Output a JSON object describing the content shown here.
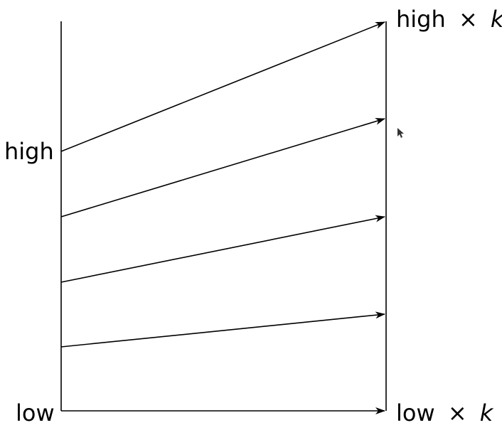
{
  "diagram": {
    "left_axis": {
      "high_label": "high",
      "low_label": "low"
    },
    "right_axis": {
      "high_label_text": "high",
      "low_label_text": "low",
      "times_symbol": "×",
      "factor": "k"
    },
    "mapping_arrows_count": 4
  },
  "cursor": {
    "icon": "mouse-pointer-icon"
  }
}
